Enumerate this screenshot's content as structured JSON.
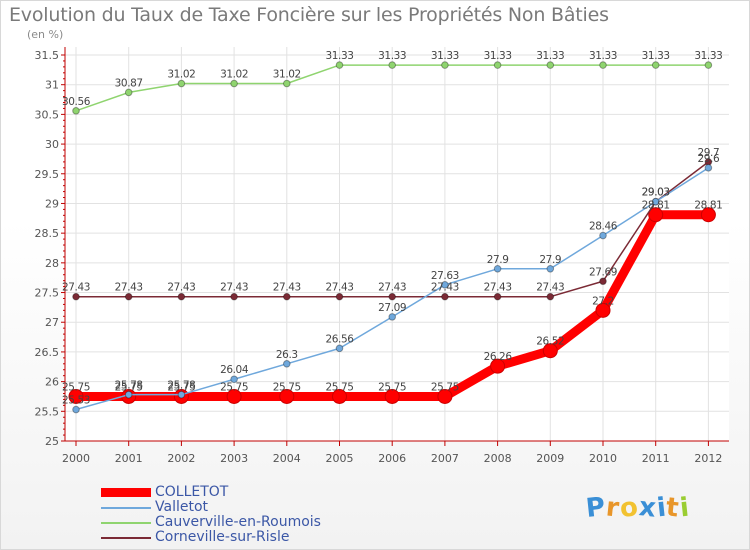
{
  "title": "Evolution du Taux de Taxe Foncière sur les Propriétés Non Bâties",
  "unit": "(en %)",
  "logo": [
    "P",
    "r",
    "o",
    "x",
    "i",
    "t",
    "i"
  ],
  "logo_colors": [
    "#3a8fd6",
    "#e8962a",
    "#f2c230",
    "#3a8fd6",
    "#3a8fd6",
    "#e8962a",
    "#9acd32"
  ],
  "chart_data": {
    "type": "line",
    "x": [
      "2000",
      "2001",
      "2002",
      "2003",
      "2004",
      "2005",
      "2006",
      "2007",
      "2008",
      "2009",
      "2010",
      "2011",
      "2012"
    ],
    "ylim": [
      25,
      31.5
    ],
    "yticks": [
      "25",
      "25.5",
      "26",
      "26.5",
      "27",
      "27.5",
      "28",
      "28.5",
      "29",
      "29.5",
      "30",
      "30.5",
      "31",
      "31.5"
    ],
    "grid": true,
    "legend_position": "bottom-left",
    "series": [
      {
        "name": "COLLETOT",
        "color": "#ff0000",
        "values": [
          25.75,
          25.75,
          25.75,
          25.75,
          25.75,
          25.75,
          25.75,
          25.75,
          26.26,
          26.52,
          27.2,
          28.81,
          28.81
        ],
        "labels": [
          "25.75",
          "25.75",
          "25.75",
          "25.75",
          "25.75",
          "25.75",
          "25.75",
          "25.75",
          "26.26",
          "26.52",
          "27.2",
          "28.81",
          "28.81"
        ]
      },
      {
        "name": "Valletot",
        "color": "#6fa8dc",
        "values": [
          25.53,
          25.78,
          25.78,
          26.04,
          26.3,
          26.56,
          27.09,
          27.63,
          27.9,
          27.9,
          28.46,
          29.03,
          29.6
        ],
        "labels": [
          "25.53",
          "25.78",
          "25.78",
          "26.04",
          "26.3",
          "26.56",
          "27.09",
          "27.63",
          "27.9",
          "27.9",
          "28.46",
          "29.03",
          "29.6"
        ]
      },
      {
        "name": "Cauverville-en-Roumois",
        "color": "#8fd46f",
        "values": [
          30.56,
          30.87,
          31.02,
          31.02,
          31.02,
          31.33,
          31.33,
          31.33,
          31.33,
          31.33,
          31.33,
          31.33,
          31.33
        ],
        "labels": [
          "30.56",
          "30.87",
          "31.02",
          "31.02",
          "31.02",
          "31.33",
          "31.33",
          "31.33",
          "31.33",
          "31.33",
          "31.33",
          "31.33",
          "31.33"
        ]
      },
      {
        "name": "Corneville-sur-Risle",
        "color": "#7b2a35",
        "values": [
          27.43,
          27.43,
          27.43,
          27.43,
          27.43,
          27.43,
          27.43,
          27.43,
          27.43,
          27.43,
          27.69,
          29.03,
          29.7
        ],
        "labels": [
          "27.43",
          "27.43",
          "27.43",
          "27.43",
          "27.43",
          "27.43",
          "27.43",
          "27.43",
          "27.43",
          "27.43",
          "27.69",
          "29.03",
          "29.7"
        ]
      }
    ]
  }
}
